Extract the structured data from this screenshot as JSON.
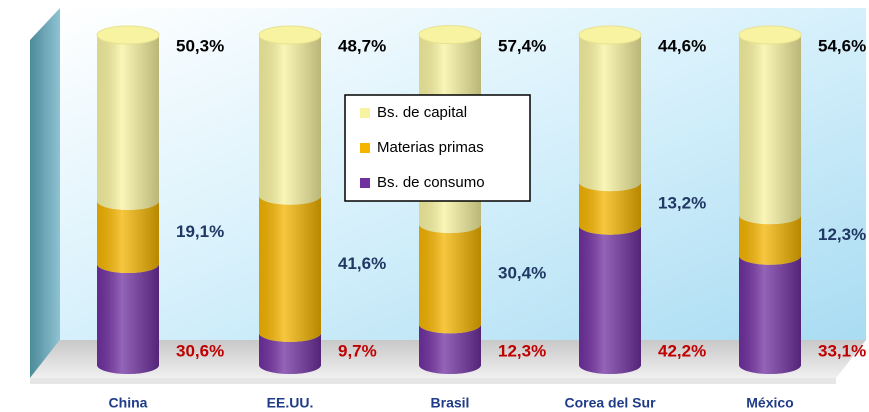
{
  "chart_data": {
    "type": "bar",
    "stacked": true,
    "categories": [
      "China",
      "EE.UU.",
      "Brasil",
      "Corea del Sur",
      "México"
    ],
    "series": [
      {
        "name": "Bs. de capital",
        "color": "#f7f3a0",
        "label_color": "#000000",
        "values": [
          50.3,
          48.7,
          57.4,
          44.6,
          54.6
        ],
        "value_labels": [
          "50,3%",
          "48,7%",
          "57,4%",
          "44,6%",
          "54,6%"
        ]
      },
      {
        "name": "Materias primas",
        "color": "#f5b400",
        "label_color": "#1f3864",
        "values": [
          19.1,
          41.6,
          30.4,
          13.2,
          12.3
        ],
        "value_labels": [
          "19,1%",
          "41,6%",
          "30,4%",
          "13,2%",
          "12,3%"
        ]
      },
      {
        "name": "Bs. de consumo",
        "color": "#7030a0",
        "label_color": "#c00000",
        "values": [
          30.6,
          9.7,
          12.3,
          42.2,
          33.1
        ],
        "value_labels": [
          "30,6%",
          "9,7%",
          "12,3%",
          "42,2%",
          "33,1%"
        ]
      }
    ],
    "ylim": [
      0,
      100
    ]
  }
}
